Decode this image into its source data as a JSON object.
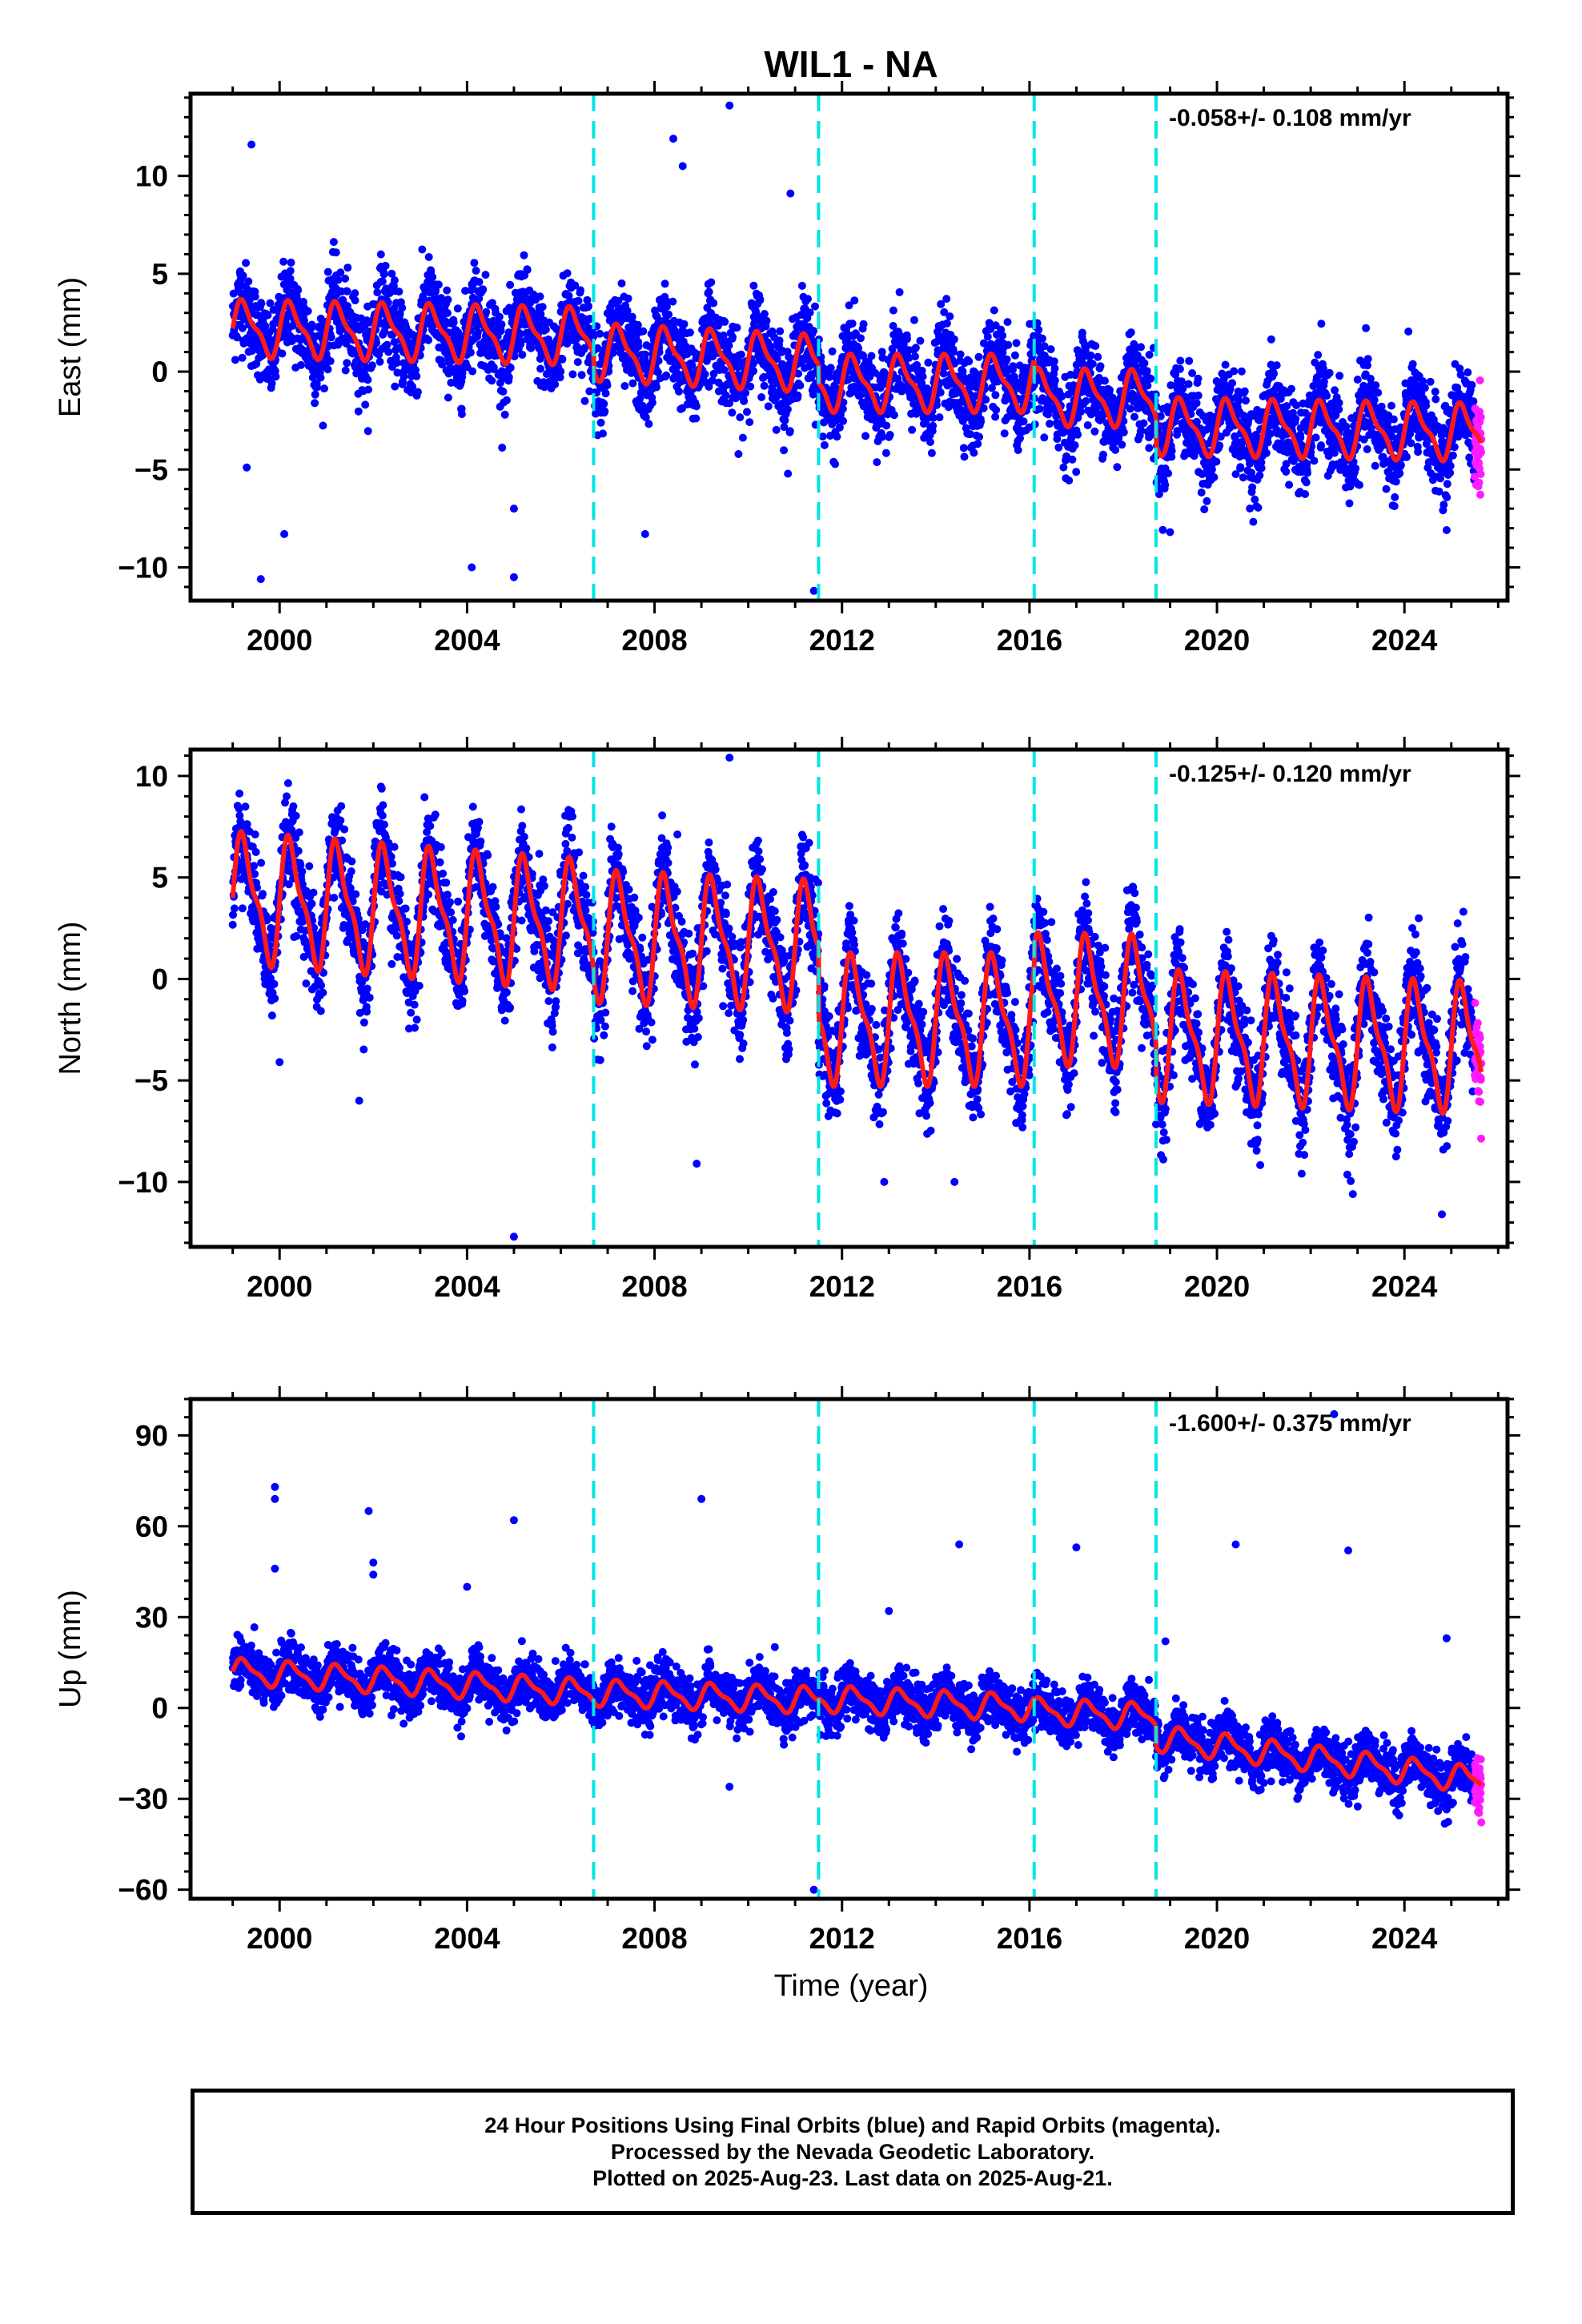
{
  "title": "WIL1 - NA",
  "xlabel": "Time (year)",
  "footer": {
    "line1": "24 Hour Positions Using Final Orbits (blue) and Rapid Orbits (magenta).",
    "line2": "Processed by the Nevada Geodetic Laboratory.",
    "line3": "Plotted on 2025-Aug-23. Last data on 2025-Aug-21."
  },
  "colors": {
    "final": "#0000ff",
    "rapid": "#ff1aff",
    "model": "#ff1a1a",
    "event_lines": "#00e5e5"
  },
  "chart_data": [
    {
      "type": "scatter",
      "component": "east",
      "ylabel": "East (mm)",
      "rate_label": "-0.058+/- 0.108 mm/yr",
      "xlim": [
        1998.1,
        2026.2
      ],
      "ylim": [
        -11.7,
        14.2
      ],
      "xticks": [
        2000,
        2004,
        2008,
        2012,
        2016,
        2020,
        2024
      ],
      "yticks": [
        -10,
        -5,
        0,
        5,
        10
      ],
      "event_lines": [
        2006.7,
        2011.5,
        2016.1,
        2018.7
      ],
      "data_start": 1999.0,
      "data_end": 2025.64,
      "rapid_start": 2025.5,
      "scatter_sd": 1.5,
      "model": {
        "amplitude": 1.5,
        "segments": [
          {
            "start": 1999.0,
            "end": 2006.7,
            "offset_start": 2.2,
            "offset_end": 1.8
          },
          {
            "start": 2006.7,
            "end": 2011.5,
            "offset_start": 1.0,
            "offset_end": 0.4
          },
          {
            "start": 2011.5,
            "end": 2016.1,
            "offset_start": -0.6,
            "offset_end": -0.6
          },
          {
            "start": 2016.1,
            "end": 2018.7,
            "offset_start": -1.3,
            "offset_end": -1.4
          },
          {
            "start": 2018.7,
            "end": 2025.64,
            "offset_start": -2.8,
            "offset_end": -3.1
          }
        ]
      },
      "outliers": [
        {
          "x": 1999.4,
          "y": 11.6
        },
        {
          "x": 1999.6,
          "y": -10.6
        },
        {
          "x": 2004.1,
          "y": -10.0
        },
        {
          "x": 2005.0,
          "y": -10.5
        },
        {
          "x": 2005.0,
          "y": -7.0
        },
        {
          "x": 2008.4,
          "y": 11.9
        },
        {
          "x": 2008.6,
          "y": 10.5
        },
        {
          "x": 2009.6,
          "y": 13.6
        },
        {
          "x": 2010.9,
          "y": 9.1
        },
        {
          "x": 2011.4,
          "y": -11.2
        },
        {
          "x": 2007.8,
          "y": -8.3
        },
        {
          "x": 2000.1,
          "y": -8.3
        },
        {
          "x": 1999.3,
          "y": -4.9
        },
        {
          "x": 2019.0,
          "y": -8.2
        },
        {
          "x": 2024.9,
          "y": -8.1
        }
      ]
    },
    {
      "type": "scatter",
      "component": "north",
      "ylabel": "North (mm)",
      "rate_label": "-0.125+/- 0.120 mm/yr",
      "xlim": [
        1998.1,
        2026.2
      ],
      "ylim": [
        -13.2,
        11.3
      ],
      "xticks": [
        2000,
        2004,
        2008,
        2012,
        2016,
        2020,
        2024
      ],
      "yticks": [
        -10,
        -5,
        0,
        5,
        10
      ],
      "event_lines": [
        2006.7,
        2011.5,
        2016.1,
        2018.7
      ],
      "data_start": 1999.0,
      "data_end": 2025.64,
      "rapid_start": 2025.5,
      "scatter_sd": 1.6,
      "model": {
        "amplitude": 3.3,
        "segments": [
          {
            "start": 1999.0,
            "end": 2006.7,
            "offset_start": 4.0,
            "offset_end": 2.6
          },
          {
            "start": 2006.7,
            "end": 2011.5,
            "offset_start": 2.1,
            "offset_end": 1.6
          },
          {
            "start": 2011.5,
            "end": 2016.1,
            "offset_start": -2.0,
            "offset_end": -2.0
          },
          {
            "start": 2016.1,
            "end": 2018.7,
            "offset_start": -1.0,
            "offset_end": -1.1
          },
          {
            "start": 2018.7,
            "end": 2025.64,
            "offset_start": -2.8,
            "offset_end": -3.4
          }
        ]
      },
      "outliers": [
        {
          "x": 2005.0,
          "y": -12.7
        },
        {
          "x": 2009.6,
          "y": 10.9
        },
        {
          "x": 2008.9,
          "y": -9.1
        },
        {
          "x": 2001.7,
          "y": -6.0
        },
        {
          "x": 2000.0,
          "y": -4.1
        },
        {
          "x": 2022.9,
          "y": -10.6
        },
        {
          "x": 2024.8,
          "y": -11.6
        },
        {
          "x": 2012.9,
          "y": -10.0
        },
        {
          "x": 2014.4,
          "y": -10.0
        }
      ]
    },
    {
      "type": "scatter",
      "component": "up",
      "ylabel": "Up (mm)",
      "rate_label": "-1.600+/- 0.375 mm/yr",
      "xlim": [
        1998.1,
        2026.2
      ],
      "ylim": [
        -63,
        102
      ],
      "xticks": [
        2000,
        2004,
        2008,
        2012,
        2016,
        2020,
        2024
      ],
      "yticks": [
        -60,
        -30,
        0,
        30,
        60,
        90
      ],
      "event_lines": [
        2006.7,
        2011.5,
        2016.1,
        2018.7
      ],
      "data_start": 1999.0,
      "data_end": 2025.64,
      "rapid_start": 2025.5,
      "scatter_sd": 5.5,
      "model": {
        "amplitude": 4.5,
        "segments": [
          {
            "start": 1999.0,
            "end": 2006.7,
            "offset_start": 12.0,
            "offset_end": 5.0
          },
          {
            "start": 2006.7,
            "end": 2011.5,
            "offset_start": 5.0,
            "offset_end": 2.5
          },
          {
            "start": 2011.5,
            "end": 2016.1,
            "offset_start": 3.0,
            "offset_end": 0.0
          },
          {
            "start": 2016.1,
            "end": 2018.7,
            "offset_start": -1.0,
            "offset_end": -3.0
          },
          {
            "start": 2018.7,
            "end": 2025.64,
            "offset_start": -10.0,
            "offset_end": -24.0
          }
        ]
      },
      "outliers": [
        {
          "x": 1999.9,
          "y": 73.0
        },
        {
          "x": 1999.9,
          "y": 69.0
        },
        {
          "x": 1999.9,
          "y": 46.0
        },
        {
          "x": 2001.9,
          "y": 65.0
        },
        {
          "x": 2002.0,
          "y": 48.0
        },
        {
          "x": 2002.0,
          "y": 44.0
        },
        {
          "x": 2004.0,
          "y": 40.0
        },
        {
          "x": 2005.0,
          "y": 62.0
        },
        {
          "x": 2009.0,
          "y": 69.0
        },
        {
          "x": 2014.5,
          "y": 54.0
        },
        {
          "x": 2017.0,
          "y": 53.0
        },
        {
          "x": 2020.4,
          "y": 54.0
        },
        {
          "x": 2022.5,
          "y": 97.0
        },
        {
          "x": 2022.8,
          "y": 52.0
        },
        {
          "x": 2024.9,
          "y": 23.0
        },
        {
          "x": 2011.4,
          "y": -60.0
        },
        {
          "x": 2009.6,
          "y": -26.0
        },
        {
          "x": 2018.9,
          "y": 22.0
        },
        {
          "x": 2013.0,
          "y": 32.0
        }
      ]
    }
  ]
}
